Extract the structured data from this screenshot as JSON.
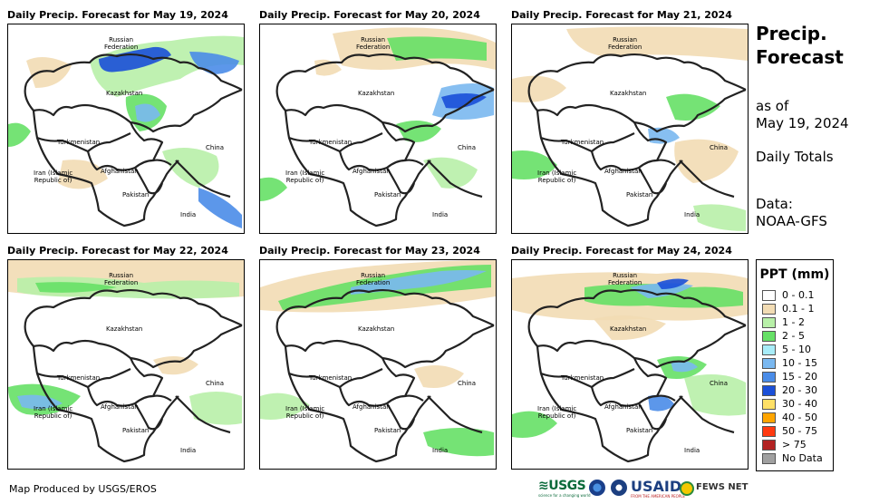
{
  "panels": [
    {
      "title": "Daily Precip. Forecast for May 19, 2024",
      "pattern": "p19"
    },
    {
      "title": "Daily Precip. Forecast for May 20, 2024",
      "pattern": "p20"
    },
    {
      "title": "Daily Precip. Forecast for May 21, 2024",
      "pattern": "p21"
    },
    {
      "title": "Daily Precip. Forecast for May 22, 2024",
      "pattern": "p22"
    },
    {
      "title": "Daily Precip. Forecast for May 23, 2024",
      "pattern": "p23"
    },
    {
      "title": "Daily Precip. Forecast for May 24, 2024",
      "pattern": "p24"
    }
  ],
  "labels": {
    "russia": "Russian\nFederation",
    "kazakhstan": "Kazakhstan",
    "turkmenistan": "Turkmenistan",
    "china": "China",
    "iran": "Iran  (Islamic\nRepublic of)",
    "afghanistan": "Afghanistan",
    "pakistan": "Pakistan",
    "india": "India"
  },
  "side": {
    "title": "Precip. Forecast",
    "as_of": "as of",
    "date": "May 19, 2024",
    "totals": "Daily Totals",
    "data_label": "Data:",
    "source": "NOAA-GFS"
  },
  "legend": {
    "title": "PPT (mm)",
    "items": [
      {
        "label": "0 - 0.1",
        "color": "#ffffff"
      },
      {
        "label": "0.1 - 1",
        "color": "#f2dcb4"
      },
      {
        "label": "1 - 2",
        "color": "#b8f0a8"
      },
      {
        "label": "2 - 5",
        "color": "#66e066"
      },
      {
        "label": "5 - 10",
        "color": "#a8ecf8"
      },
      {
        "label": "10 - 15",
        "color": "#7ab8f0"
      },
      {
        "label": "15 - 20",
        "color": "#4a8ce8"
      },
      {
        "label": "20 - 30",
        "color": "#1a4fd8"
      },
      {
        "label": "30 - 40",
        "color": "#ffe066"
      },
      {
        "label": "40 - 50",
        "color": "#ffa500"
      },
      {
        "label": "50 - 75",
        "color": "#ff3a10"
      },
      {
        "label": "> 75",
        "color": "#b22222"
      },
      {
        "label": "No Data",
        "color": "#a0a0a0"
      }
    ]
  },
  "credit": "Map Produced by USGS/EROS",
  "logos": {
    "usgs": "≋USGS",
    "usgs_sub": "science for a changing world",
    "usaid": "USAID",
    "usaid_sub": "FROM THE AMERICAN PEOPLE",
    "fews": "FEWS NET"
  }
}
